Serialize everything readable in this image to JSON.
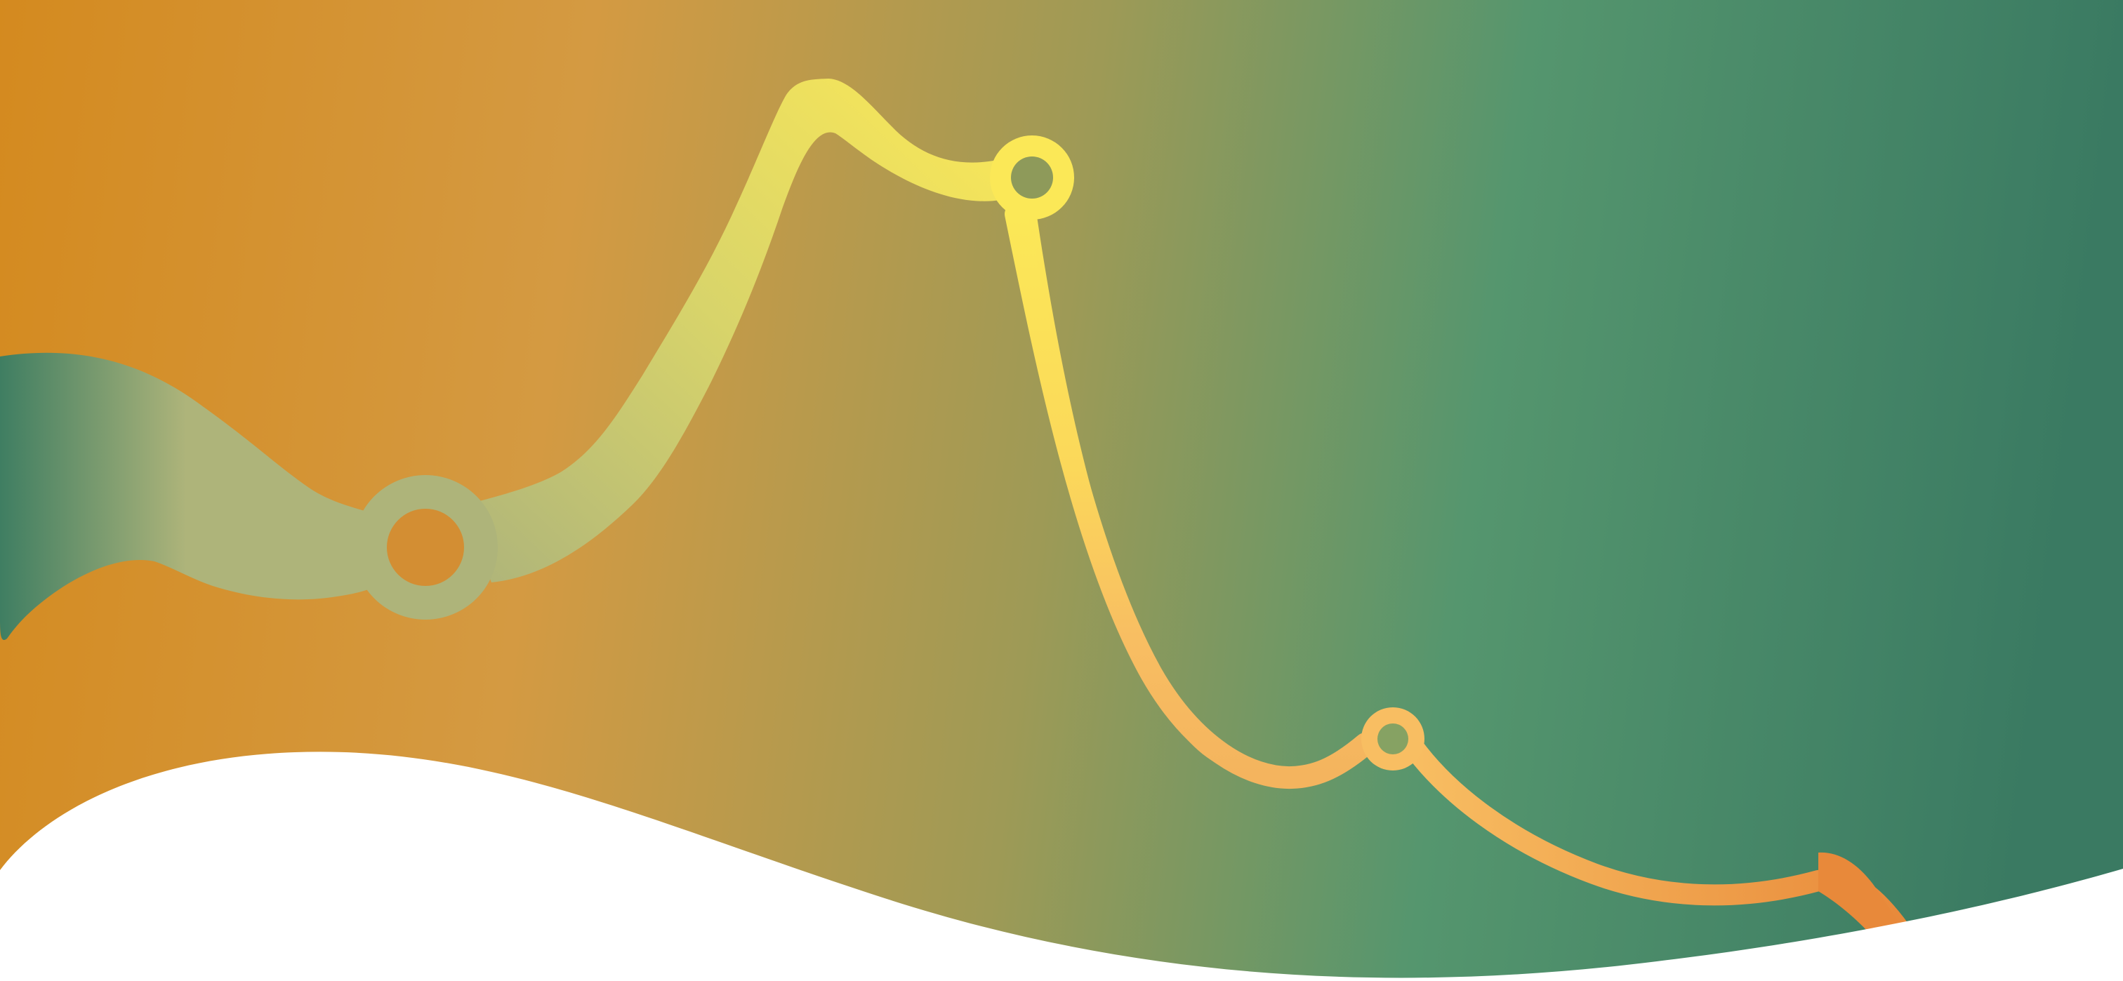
{
  "banner": {
    "colors": {
      "orange": "#D48A1F",
      "sand": "#D49A42",
      "olive": "#9E9A56",
      "green": "#55966E",
      "teal": "#3A7A62",
      "yellow": "#FBE857",
      "peach": "#F8BE62",
      "deep_orange": "#E8893A",
      "sage": "#AEB47A",
      "white": "#FFFFFF"
    },
    "nodes": [
      {
        "name": "node-left",
        "color": "sage"
      },
      {
        "name": "node-peak",
        "color": "yellow"
      },
      {
        "name": "node-valley",
        "color": "peach"
      }
    ]
  }
}
